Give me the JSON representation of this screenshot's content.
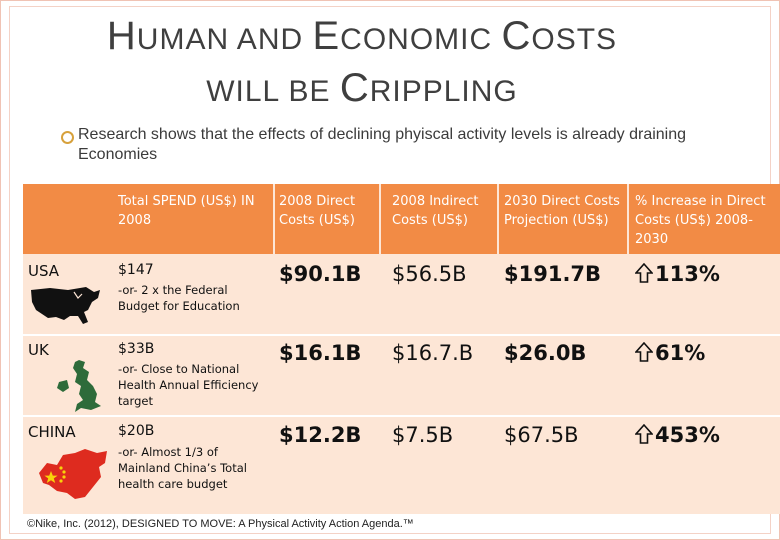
{
  "slide": {
    "title_line1": {
      "cap1": "H",
      "rest1": "UMAN AND ",
      "cap2": "E",
      "rest2": "CONOMIC ",
      "cap3": "C",
      "rest3": "OSTS"
    },
    "title_line2": {
      "rest1": "WILL BE ",
      "cap1": "C",
      "rest2": "RIPPLING"
    },
    "bullet": "Research shows that the effects of declining phyiscal activity levels is already draining Economies",
    "bullet_icon": "circle-bullet-icon",
    "accent_color": "#f28b45",
    "row_color": "#fde6d6",
    "footer": "©Nike, Inc. (2012), DESIGNED TO MOVE: A Physical Activity Action Agenda.™"
  },
  "table": {
    "headers": [
      "Total SPEND (US$) IN 2008",
      "2008 Direct Costs (US$)",
      "2008 Indirect Costs (US$)",
      "2030 Direct Costs Projection (US$)",
      "% Increase in Direct Costs (US$) 2008-2030"
    ],
    "rows": [
      {
        "country": "USA",
        "map_icon": "usa-map-icon",
        "spend": "$147",
        "note": "-or- 2 x the Federal Budget for Education",
        "direct_2008": "$90.1B",
        "indirect_2008": "$56.5B",
        "direct_2030": "$191.7B",
        "increase": "113%"
      },
      {
        "country": "UK",
        "map_icon": "uk-map-icon",
        "spend": "$33B",
        "note": "-or- Close to National Health Annual Efficiency target",
        "direct_2008": "$16.1B",
        "indirect_2008": "$16.7.B",
        "direct_2030": "$26.0B",
        "increase": "61%"
      },
      {
        "country": "CHINA",
        "map_icon": "china-flag-map-icon",
        "spend": "$20B",
        "note": "-or- Almost 1/3 of Mainland China’s Total health care budget",
        "direct_2008": "$12.2B",
        "indirect_2008": "$7.5B",
        "direct_2030": "$67.5B",
        "increase": "453%"
      }
    ],
    "increase_icon": "up-arrow-icon"
  }
}
